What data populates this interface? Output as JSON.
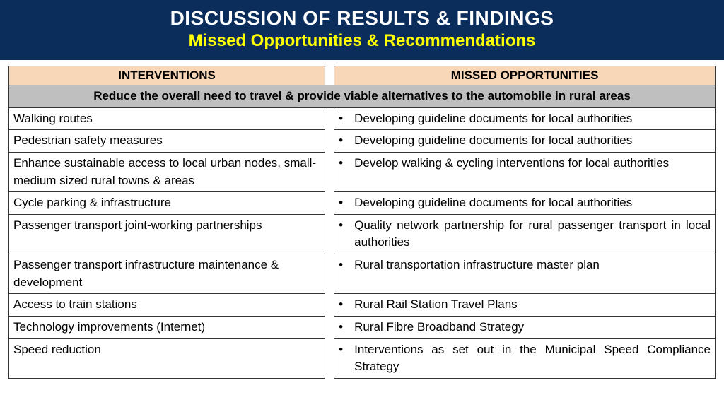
{
  "header": {
    "title": "DISCUSSION OF RESULTS & FINDINGS",
    "subtitle": "Missed Opportunities & Recommendations"
  },
  "table": {
    "columns": [
      "INTERVENTIONS",
      "MISSED OPPORTUNITIES"
    ],
    "section_header": "Reduce the overall need to travel & provide viable alternatives to the automobile in rural areas",
    "rows": [
      {
        "intervention": "Walking routes",
        "opportunity": "Developing guideline documents for local authorities"
      },
      {
        "intervention": "Pedestrian safety measures",
        "opportunity": "Developing guideline documents for local authorities"
      },
      {
        "intervention": "Enhance sustainable access to local urban nodes, small-medium sized rural towns & areas",
        "opportunity": "Develop walking & cycling interventions for local authorities"
      },
      {
        "intervention": "Cycle parking & infrastructure",
        "opportunity": "Developing guideline documents for local authorities"
      },
      {
        "intervention": "Passenger transport joint-working partnerships",
        "opportunity": "Quality network partnership for rural passenger transport in local authorities"
      },
      {
        "intervention": "Passenger transport infrastructure maintenance & development",
        "opportunity": "Rural transportation infrastructure master plan"
      },
      {
        "intervention": "Access to train stations",
        "opportunity": "Rural Rail Station Travel Plans"
      },
      {
        "intervention": "Technology improvements (Internet)",
        "opportunity": "Rural Fibre Broadband Strategy"
      },
      {
        "intervention": "Speed reduction",
        "opportunity": "Interventions as set out in the Municipal Speed Compliance Strategy"
      }
    ],
    "colors": {
      "header_bg": "#0a2d5c",
      "title_color": "#ffffff",
      "subtitle_color": "#ffff00",
      "th_bg": "#f8d7b8",
      "section_bg": "#bfbfbf",
      "border": "#333333"
    }
  }
}
